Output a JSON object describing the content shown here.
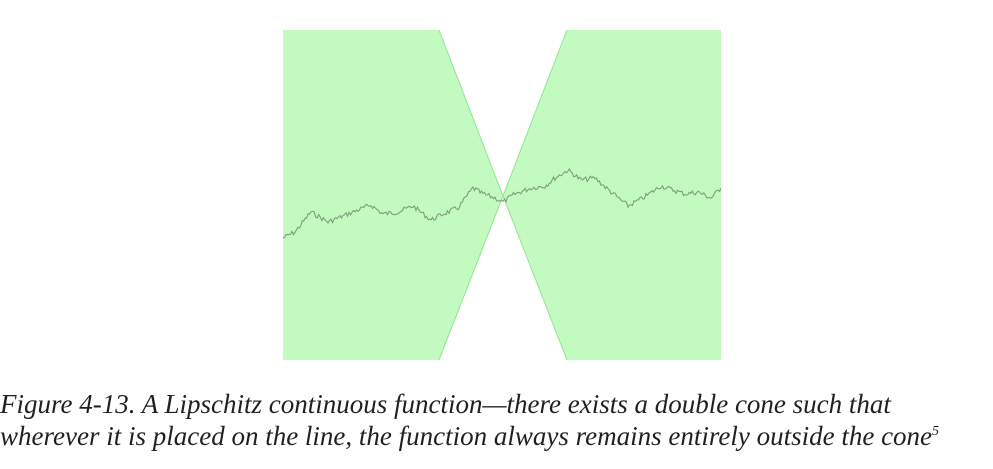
{
  "figure": {
    "colors": {
      "cone_fill": "#c2fac0",
      "cone_edge": "#90e690",
      "function_line": "#7f9e7c"
    }
  },
  "caption": {
    "line1": "Figure 4-13. A Lipschitz continuous function—there exists a double cone such that",
    "line2": "wherever it is placed on the line, the function always remains entirely outside the cone",
    "footnote": "5"
  }
}
